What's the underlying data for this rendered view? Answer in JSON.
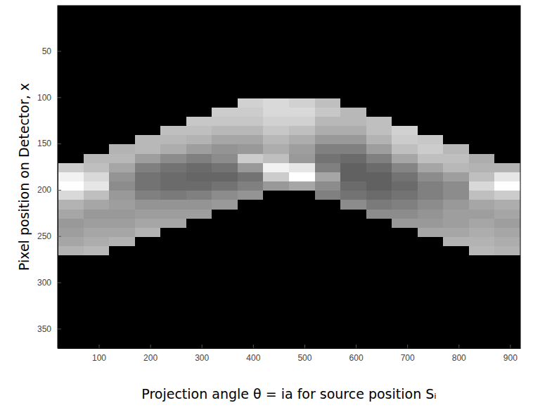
{
  "chart_data": {
    "type": "heatmap",
    "x_label": "Projection angle θ = ia  for source position Sᵢ",
    "y_label": "Pixel position on Detector, x",
    "xlim": [
      20,
      920
    ],
    "ylim": [
      1,
      371
    ],
    "xticks": [
      100,
      200,
      300,
      400,
      500,
      600,
      700,
      800,
      900
    ],
    "yticks": [
      50,
      100,
      150,
      200,
      250,
      300,
      350
    ],
    "grid": false,
    "x": [
      45,
      95,
      145,
      195,
      245,
      295,
      345,
      395,
      445,
      495,
      545,
      595,
      645,
      695,
      745,
      795,
      845,
      895
    ],
    "y": [
      6,
      16,
      26,
      36,
      46,
      56,
      66,
      76,
      86,
      96,
      106,
      116,
      126,
      136,
      146,
      156,
      166,
      176,
      186,
      196,
      206,
      216,
      226,
      236,
      246,
      256,
      266,
      276,
      286,
      296,
      306,
      316,
      326,
      336,
      346,
      356,
      366
    ],
    "cell_range": [
      0,
      1
    ],
    "cells": [
      [
        0,
        0,
        0,
        0,
        0,
        0,
        0,
        0,
        0,
        0,
        0,
        0,
        0,
        0,
        0,
        0,
        0,
        0
      ],
      [
        0,
        0,
        0,
        0,
        0,
        0,
        0,
        0,
        0,
        0,
        0,
        0,
        0,
        0,
        0,
        0,
        0,
        0
      ],
      [
        0,
        0,
        0,
        0,
        0,
        0,
        0,
        0,
        0,
        0,
        0,
        0,
        0,
        0,
        0,
        0,
        0,
        0
      ],
      [
        0,
        0,
        0,
        0,
        0,
        0,
        0,
        0,
        0,
        0,
        0,
        0,
        0,
        0,
        0,
        0,
        0,
        0
      ],
      [
        0,
        0,
        0,
        0,
        0,
        0,
        0,
        0,
        0,
        0,
        0,
        0,
        0,
        0,
        0,
        0,
        0,
        0
      ],
      [
        0,
        0,
        0,
        0,
        0,
        0,
        0,
        0,
        0,
        0,
        0,
        0,
        0,
        0,
        0,
        0,
        0,
        0
      ],
      [
        0,
        0,
        0,
        0,
        0,
        0,
        0,
        0,
        0,
        0,
        0,
        0,
        0,
        0,
        0,
        0,
        0,
        0
      ],
      [
        0,
        0,
        0,
        0,
        0,
        0,
        0,
        0,
        0,
        0,
        0,
        0,
        0,
        0,
        0,
        0,
        0,
        0
      ],
      [
        0,
        0,
        0,
        0,
        0,
        0,
        0,
        0,
        0,
        0,
        0,
        0,
        0,
        0,
        0,
        0,
        0,
        0
      ],
      [
        0,
        0,
        0,
        0,
        0,
        0,
        0,
        0,
        0,
        0,
        0,
        0,
        0,
        0,
        0,
        0,
        0,
        0
      ],
      [
        0,
        0,
        0,
        0,
        0,
        0,
        0,
        0.82,
        0.85,
        0.82,
        0.75,
        0,
        0,
        0,
        0,
        0,
        0,
        0
      ],
      [
        0,
        0,
        0,
        0,
        0,
        0,
        0.8,
        0.8,
        0.85,
        0.85,
        0.78,
        0.72,
        0,
        0,
        0,
        0,
        0,
        0
      ],
      [
        0,
        0,
        0,
        0,
        0,
        0.78,
        0.78,
        0.78,
        0.82,
        0.82,
        0.72,
        0.72,
        0.75,
        0,
        0,
        0,
        0,
        0
      ],
      [
        0,
        0,
        0,
        0,
        0.75,
        0.75,
        0.72,
        0.72,
        0.78,
        0.75,
        0.68,
        0.68,
        0.75,
        0.82,
        0,
        0,
        0,
        0
      ],
      [
        0,
        0,
        0,
        0.72,
        0.72,
        0.7,
        0.65,
        0.65,
        0.72,
        0.68,
        0.6,
        0.6,
        0.7,
        0.8,
        0.78,
        0,
        0,
        0
      ],
      [
        0,
        0,
        0.7,
        0.72,
        0.68,
        0.62,
        0.58,
        0.6,
        0.68,
        0.62,
        0.5,
        0.5,
        0.62,
        0.75,
        0.8,
        0.72,
        0,
        0
      ],
      [
        0,
        0.72,
        0.72,
        0.62,
        0.55,
        0.5,
        0.55,
        0.8,
        0.75,
        0.6,
        0.45,
        0.42,
        0.5,
        0.65,
        0.75,
        0.75,
        0.68,
        0
      ],
      [
        0.8,
        0.75,
        0.65,
        0.5,
        0.45,
        0.42,
        0.45,
        0.6,
        0.95,
        0.9,
        0.5,
        0.38,
        0.42,
        0.52,
        0.65,
        0.72,
        0.7,
        0.7
      ],
      [
        0.95,
        0.85,
        0.58,
        0.45,
        0.42,
        0.4,
        0.4,
        0.45,
        0.8,
        1.0,
        0.65,
        0.38,
        0.38,
        0.45,
        0.55,
        0.62,
        0.75,
        0.9
      ],
      [
        1.0,
        0.9,
        0.55,
        0.45,
        0.42,
        0.42,
        0.45,
        0.5,
        0.6,
        0.65,
        0.55,
        0.42,
        0.38,
        0.42,
        0.5,
        0.55,
        0.85,
        1.0
      ],
      [
        0.85,
        0.75,
        0.6,
        0.5,
        0.48,
        0.5,
        0.55,
        0.58,
        0,
        0,
        0.5,
        0.45,
        0.42,
        0.45,
        0.5,
        0.55,
        0.75,
        0.8
      ],
      [
        0.7,
        0.65,
        0.62,
        0.58,
        0.58,
        0.58,
        0.6,
        0,
        0,
        0,
        0,
        0.55,
        0.48,
        0.5,
        0.55,
        0.6,
        0.65,
        0.68
      ],
      [
        0.65,
        0.6,
        0.6,
        0.62,
        0.62,
        0.62,
        0,
        0,
        0,
        0,
        0,
        0,
        0.55,
        0.55,
        0.58,
        0.62,
        0.62,
        0.65
      ],
      [
        0.6,
        0.62,
        0.62,
        0.65,
        0.65,
        0,
        0,
        0,
        0,
        0,
        0,
        0,
        0,
        0.6,
        0.6,
        0.62,
        0.65,
        0.62
      ],
      [
        0.62,
        0.65,
        0.65,
        0.7,
        0,
        0,
        0,
        0,
        0,
        0,
        0,
        0,
        0,
        0,
        0.65,
        0.65,
        0.68,
        0.65
      ],
      [
        0.65,
        0.68,
        0.7,
        0,
        0,
        0,
        0,
        0,
        0,
        0,
        0,
        0,
        0,
        0,
        0,
        0.7,
        0.7,
        0.68
      ],
      [
        0.7,
        0.72,
        0,
        0,
        0,
        0,
        0,
        0,
        0,
        0,
        0,
        0,
        0,
        0,
        0,
        0,
        0.72,
        0.7
      ],
      [
        0,
        0,
        0,
        0,
        0,
        0,
        0,
        0,
        0,
        0,
        0,
        0,
        0,
        0,
        0,
        0,
        0,
        0
      ],
      [
        0,
        0,
        0,
        0,
        0,
        0,
        0,
        0,
        0,
        0,
        0,
        0,
        0,
        0,
        0,
        0,
        0,
        0
      ],
      [
        0,
        0,
        0,
        0,
        0,
        0,
        0,
        0,
        0,
        0,
        0,
        0,
        0,
        0,
        0,
        0,
        0,
        0
      ],
      [
        0,
        0,
        0,
        0,
        0,
        0,
        0,
        0,
        0,
        0,
        0,
        0,
        0,
        0,
        0,
        0,
        0,
        0
      ],
      [
        0,
        0,
        0,
        0,
        0,
        0,
        0,
        0,
        0,
        0,
        0,
        0,
        0,
        0,
        0,
        0,
        0,
        0
      ],
      [
        0,
        0,
        0,
        0,
        0,
        0,
        0,
        0,
        0,
        0,
        0,
        0,
        0,
        0,
        0,
        0,
        0,
        0
      ],
      [
        0,
        0,
        0,
        0,
        0,
        0,
        0,
        0,
        0,
        0,
        0,
        0,
        0,
        0,
        0,
        0,
        0,
        0
      ],
      [
        0,
        0,
        0,
        0,
        0,
        0,
        0,
        0,
        0,
        0,
        0,
        0,
        0,
        0,
        0,
        0,
        0,
        0
      ],
      [
        0,
        0,
        0,
        0,
        0,
        0,
        0,
        0,
        0,
        0,
        0,
        0,
        0,
        0,
        0,
        0,
        0,
        0
      ],
      [
        0,
        0,
        0,
        0,
        0,
        0,
        0,
        0,
        0,
        0,
        0,
        0,
        0,
        0,
        0,
        0,
        0,
        0
      ]
    ]
  }
}
